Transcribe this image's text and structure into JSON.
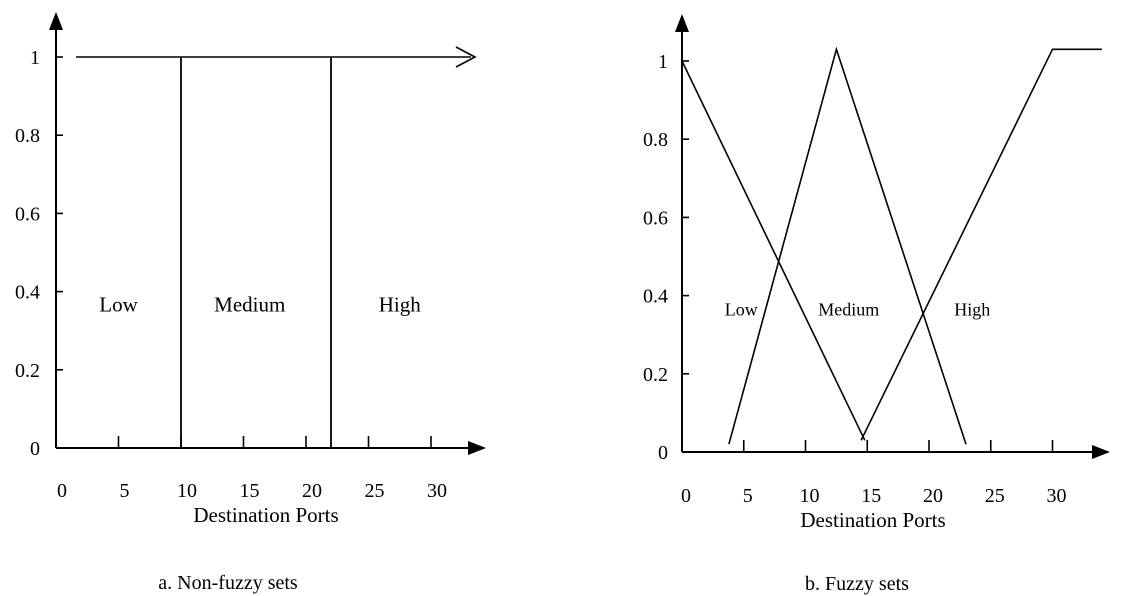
{
  "chart_data": [
    {
      "type": "line",
      "caption": "a.  Non-fuzzy sets",
      "xlabel": "Destination Ports",
      "ylabel": "",
      "x_ticks": [
        "0",
        "5",
        "10",
        "15",
        "20",
        "25",
        "30"
      ],
      "y_ticks": [
        "0",
        "0.2",
        "0.4",
        "0.6",
        "0.8",
        "1"
      ],
      "xlim": [
        0,
        30
      ],
      "ylim": [
        0,
        1
      ],
      "boundaries": [
        10,
        22
      ],
      "top_line": {
        "y": 1,
        "x": [
          0,
          32
        ]
      },
      "regions": [
        {
          "label": "Low",
          "x": 5,
          "y": 0.4
        },
        {
          "label": "Medium",
          "x": 15.5,
          "y": 0.4
        },
        {
          "label": "High",
          "x": 27.5,
          "y": 0.4
        }
      ]
    },
    {
      "type": "line",
      "caption": "b.  Fuzzy sets",
      "xlabel": "Destination Ports",
      "ylabel": "",
      "x_ticks": [
        "0",
        "5",
        "10",
        "15",
        "20",
        "25",
        "30"
      ],
      "y_ticks": [
        "0",
        "0.2",
        "0.4",
        "0.6",
        "0.8",
        "1"
      ],
      "xlim": [
        0,
        30
      ],
      "ylim": [
        0,
        1
      ],
      "series": [
        {
          "x": [
            0,
            14.8
          ],
          "y": [
            1,
            0.03
          ]
        },
        {
          "x": [
            3.8,
            12.5,
            23
          ],
          "y": [
            0.02,
            1.03,
            0.02
          ]
        },
        {
          "x": [
            14.5,
            30,
            34
          ],
          "y": [
            0.03,
            1.03,
            1.03
          ]
        }
      ],
      "regions": [
        {
          "label": "Low",
          "x": 4.8,
          "y": 0.4
        },
        {
          "label": "Medium",
          "x": 13.5,
          "y": 0.4
        },
        {
          "label": "High",
          "x": 23.5,
          "y": 0.4
        }
      ]
    }
  ]
}
